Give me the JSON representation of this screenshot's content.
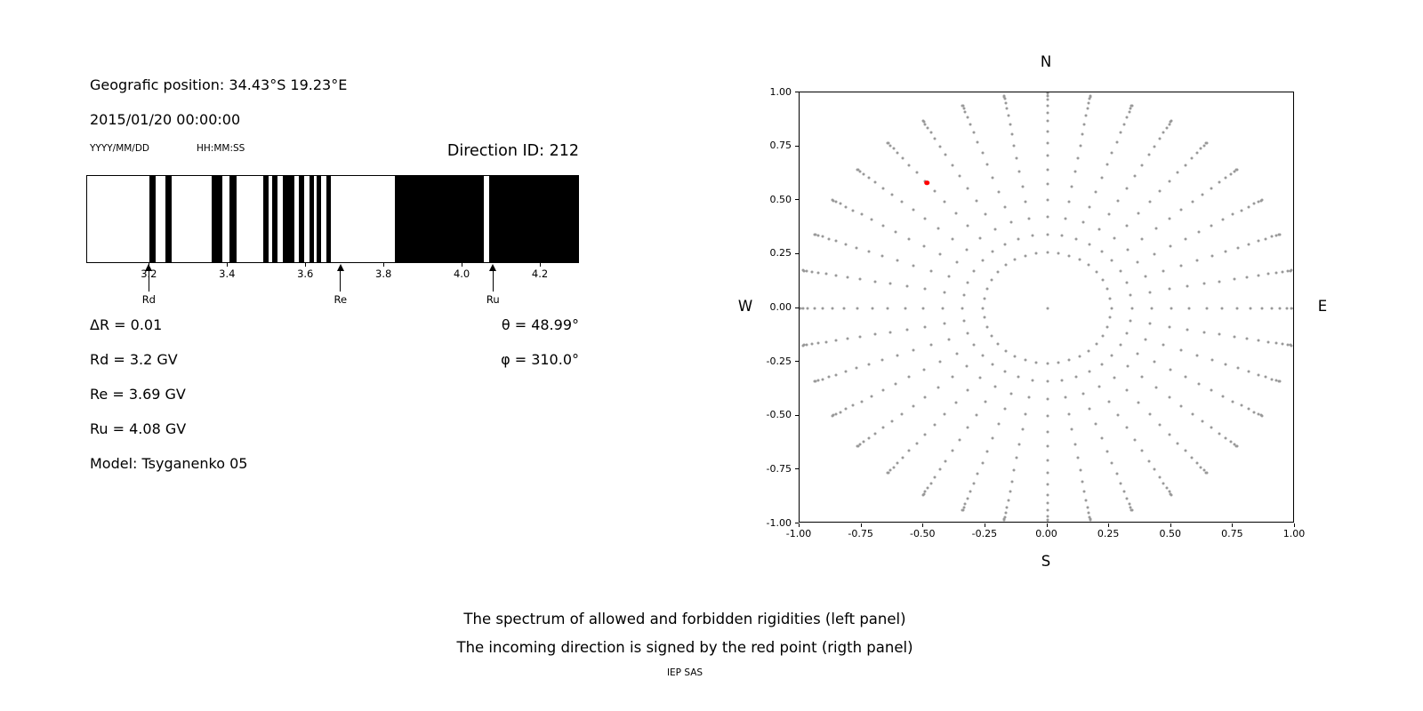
{
  "info": {
    "position": "Geografic position: 34.43°S 19.23°E",
    "datetime": "2015/01/20 00:00:00",
    "date_format_hint": "YYYY/MM/DD",
    "time_format_hint": "HH:MM:SS",
    "direction_id": "Direction ID: 212",
    "delta_r": "ΔR = 0.01",
    "rd": "Rd = 3.2 GV",
    "re": "Re = 3.69 GV",
    "ru": "Ru = 4.08 GV",
    "model": "Model: Tsyganenko 05",
    "theta": "θ = 48.99°",
    "phi": "φ = 310.0°"
  },
  "captions": {
    "line1": "The spectrum of allowed and forbidden rigidities (left panel)",
    "line2": "The incoming direction is signed by the red point (rigth panel)",
    "credit": "IEP SAS"
  },
  "chart_data": [
    {
      "type": "bar",
      "variant": "rigidity-penumbra-barcode",
      "xlim": [
        3.04,
        4.3
      ],
      "xticks": [
        3.2,
        3.4,
        3.6,
        3.8,
        4.0,
        4.2
      ],
      "xtick_labels": [
        "3.2",
        "3.4",
        "3.6",
        "3.8",
        "4.0",
        "4.2"
      ],
      "bar_color": "#000000",
      "black_bands_gv": [
        [
          3.2,
          3.215
        ],
        [
          3.24,
          3.256
        ],
        [
          3.36,
          3.388
        ],
        [
          3.406,
          3.424
        ],
        [
          3.493,
          3.506
        ],
        [
          3.515,
          3.529
        ],
        [
          3.543,
          3.571
        ],
        [
          3.584,
          3.598
        ],
        [
          3.611,
          3.621
        ],
        [
          3.63,
          3.64
        ],
        [
          3.653,
          3.666
        ],
        [
          3.829,
          4.057
        ],
        [
          4.071,
          4.3
        ]
      ],
      "markers": [
        {
          "label": "Rd",
          "value": 3.2
        },
        {
          "label": "Re",
          "value": 3.69
        },
        {
          "label": "Ru",
          "value": 4.08
        }
      ]
    },
    {
      "type": "scatter",
      "variant": "incoming-direction-map",
      "xlim": [
        -1,
        1
      ],
      "ylim": [
        -1,
        1
      ],
      "xtick_labels": [
        "-1.00",
        "-0.75",
        "-0.50",
        "-0.25",
        "0.00",
        "0.25",
        "0.50",
        "0.75",
        "1.00"
      ],
      "ytick_labels": [
        "1.00",
        "0.75",
        "0.50",
        "0.25",
        "0.00",
        "-0.25",
        "-0.50",
        "-0.75",
        "-1.00"
      ],
      "compass": {
        "top": "N",
        "bottom": "S",
        "left": "W",
        "right": "E"
      },
      "grid": {
        "azimuth_deg_start": 0,
        "azimuth_deg_step": 10,
        "azimuth_count": 36,
        "zenith_deg_start": 15,
        "zenith_deg_end": 90,
        "zenith_deg_step": 5,
        "radius": "sin(zenith)",
        "dot_color": "#999999",
        "center_dot": true
      },
      "red_point": {
        "x": -0.485,
        "y": 0.581,
        "color": "#ff0000",
        "theta_deg": 48.99,
        "phi_deg": 310.0
      }
    }
  ]
}
